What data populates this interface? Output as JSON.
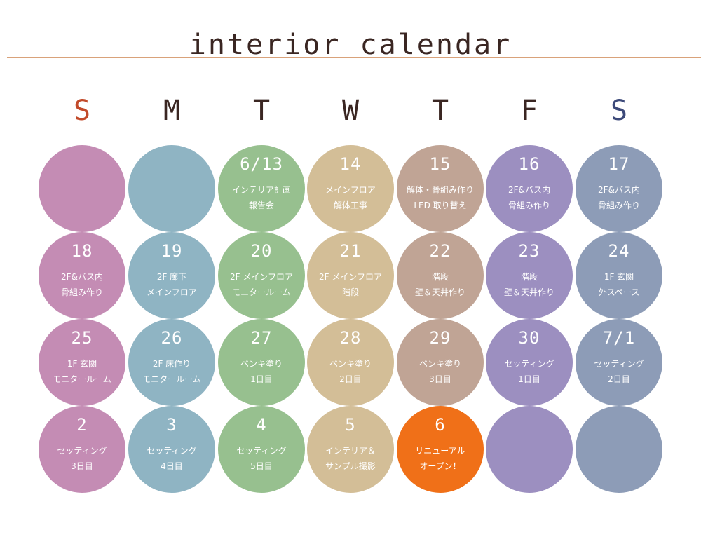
{
  "title": "interior calendar",
  "colors": {
    "sun": "#c6c0bf",
    "sunday_label": "#c24a2a",
    "saturday_label": "#3d4a7a",
    "label": "#3a2622",
    "rule": "#d9a27a",
    "highlight": "#f07018"
  },
  "weekdays": [
    "S",
    "M",
    "T",
    "W",
    "T",
    "F",
    "S"
  ],
  "weeks": [
    [
      {
        "date": "",
        "line1": "",
        "line2": ""
      },
      {
        "date": "",
        "line1": "",
        "line2": ""
      },
      {
        "date": "6/13",
        "line1": "インテリア計画",
        "line2": "報告会"
      },
      {
        "date": "14",
        "line1": "メインフロア",
        "line2": "解体工事"
      },
      {
        "date": "15",
        "line1": "解体・骨組み作り",
        "line2": "LED 取り替え"
      },
      {
        "date": "16",
        "line1": "2F&バス内",
        "line2": "骨組み作り"
      },
      {
        "date": "17",
        "line1": "2F&バス内",
        "line2": "骨組み作り"
      }
    ],
    [
      {
        "date": "18",
        "line1": "2F&バス内",
        "line2": "骨組み作り"
      },
      {
        "date": "19",
        "line1": "2F 廊下",
        "line2": "メインフロア"
      },
      {
        "date": "20",
        "line1": "2F メインフロア",
        "line2": "モニタールーム"
      },
      {
        "date": "21",
        "line1": "2F メインフロア",
        "line2": "階段"
      },
      {
        "date": "22",
        "line1": "階段",
        "line2": "壁＆天井作り"
      },
      {
        "date": "23",
        "line1": "階段",
        "line2": "壁＆天井作り"
      },
      {
        "date": "24",
        "line1": "1F 玄関",
        "line2": "外スペース"
      }
    ],
    [
      {
        "date": "25",
        "line1": "1F 玄関",
        "line2": "モニタールーム"
      },
      {
        "date": "26",
        "line1": "2F 床作り",
        "line2": "モニタールーム"
      },
      {
        "date": "27",
        "line1": "ペンキ塗り",
        "line2": "1日目"
      },
      {
        "date": "28",
        "line1": "ペンキ塗り",
        "line2": "2日目"
      },
      {
        "date": "29",
        "line1": "ペンキ塗り",
        "line2": "3日目"
      },
      {
        "date": "30",
        "line1": "セッティング",
        "line2": "1日目"
      },
      {
        "date": "7/1",
        "line1": "セッティング",
        "line2": "2日目"
      }
    ],
    [
      {
        "date": "2",
        "line1": "セッティング",
        "line2": "3日目"
      },
      {
        "date": "3",
        "line1": "セッティング",
        "line2": "4日目"
      },
      {
        "date": "4",
        "line1": "セッティング",
        "line2": "5日目"
      },
      {
        "date": "5",
        "line1": "インテリア＆",
        "line2": "サンプル撮影"
      },
      {
        "date": "6",
        "line1": "リニューアル",
        "line2": "オープン！",
        "highlight": true
      },
      {
        "date": "",
        "line1": "",
        "line2": ""
      },
      {
        "date": "",
        "line1": "",
        "line2": ""
      }
    ]
  ],
  "column_colors": [
    "#c48cb4",
    "#8fb4c3",
    "#97c08f",
    "#d3be97",
    "#c0a495",
    "#9c8fc0",
    "#8d9cb7"
  ]
}
